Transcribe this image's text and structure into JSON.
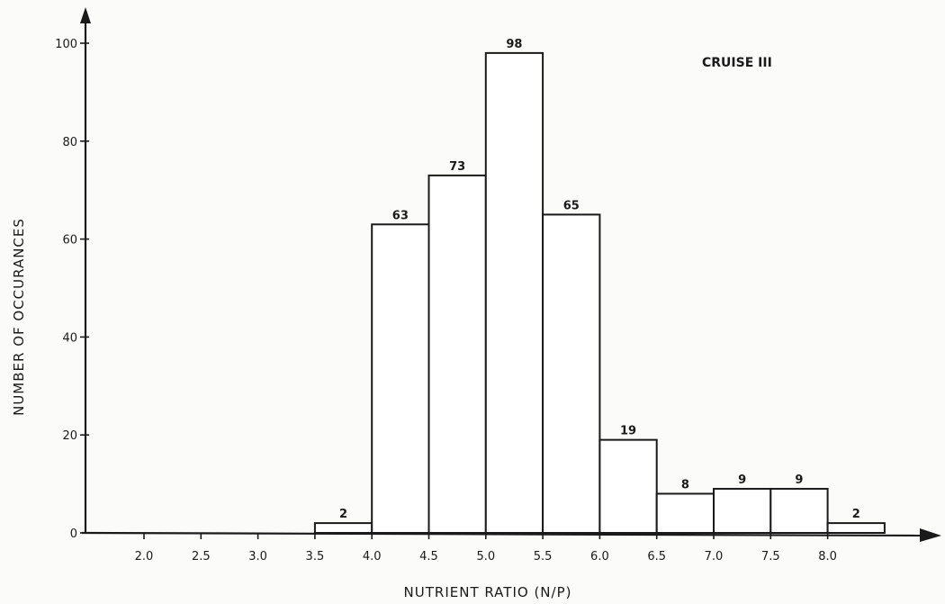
{
  "chart_data": {
    "type": "bar",
    "annotation": "CRUISE III",
    "xlabel": "NUTRIENT RATIO (N/P)",
    "ylabel": "NUMBER OF OCCURANCES",
    "ylim": [
      0,
      100
    ],
    "yticks": [
      "0",
      "20",
      "40",
      "60",
      "80",
      "100"
    ],
    "xticks": [
      "2.0",
      "2.5",
      "3.0",
      "3.5",
      "4.0",
      "4.5",
      "5.0",
      "5.5",
      "6.0",
      "6.5",
      "7.0",
      "7.5",
      "8.0"
    ],
    "bins": [
      {
        "start": 3.5,
        "end": 4.0,
        "value": 2,
        "label": "2"
      },
      {
        "start": 4.0,
        "end": 4.5,
        "value": 63,
        "label": "63"
      },
      {
        "start": 4.5,
        "end": 5.0,
        "value": 73,
        "label": "73"
      },
      {
        "start": 5.0,
        "end": 5.5,
        "value": 98,
        "label": "98"
      },
      {
        "start": 5.5,
        "end": 6.0,
        "value": 65,
        "label": "65"
      },
      {
        "start": 6.0,
        "end": 6.5,
        "value": 19,
        "label": "19"
      },
      {
        "start": 6.5,
        "end": 7.0,
        "value": 8,
        "label": "8"
      },
      {
        "start": 7.0,
        "end": 7.5,
        "value": 9,
        "label": "9"
      },
      {
        "start": 7.5,
        "end": 8.0,
        "value": 9,
        "label": "9"
      },
      {
        "start": 8.0,
        "end": 8.5,
        "value": 2,
        "label": "2"
      }
    ]
  }
}
